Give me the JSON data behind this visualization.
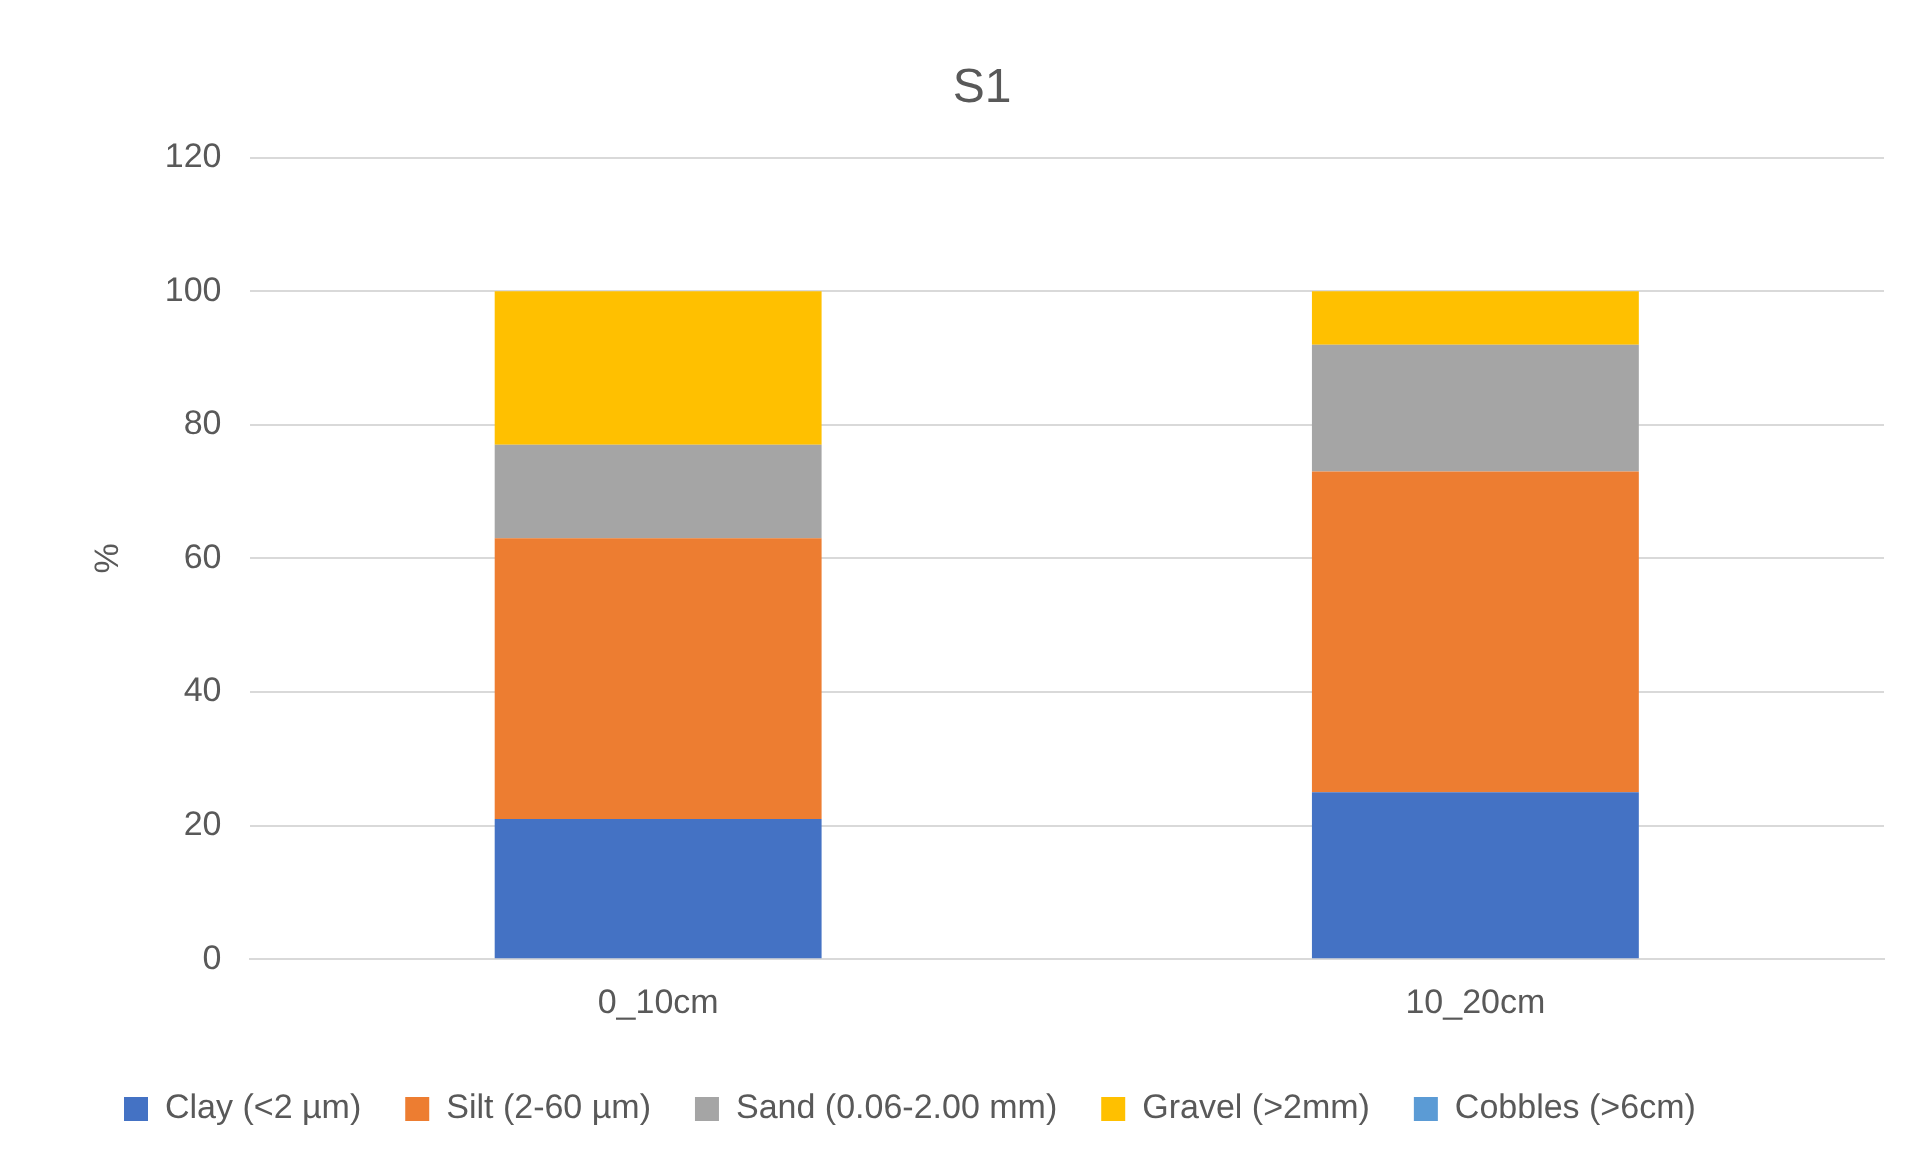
{
  "chart_data": {
    "type": "bar",
    "title": "S1",
    "ylabel": "%",
    "categories": [
      "0_10cm",
      "10_20cm"
    ],
    "stacked": true,
    "ylim": [
      0,
      120
    ],
    "yticks": [
      0,
      20,
      40,
      60,
      80,
      100,
      120
    ],
    "grid": "y",
    "legend": "bottom",
    "series": [
      {
        "name": "Clay (<2 µm)",
        "color": "#4472c4",
        "values": [
          21,
          25
        ]
      },
      {
        "name": "Silt (2-60 µm)",
        "color": "#ed7d31",
        "values": [
          42,
          48
        ]
      },
      {
        "name": "Sand (0.06-2.00 mm)",
        "color": "#a5a5a5",
        "values": [
          14,
          19
        ]
      },
      {
        "name": "Gravel (>2mm)",
        "color": "#ffc000",
        "values": [
          23,
          8
        ]
      },
      {
        "name": "Cobbles (>6cm)",
        "color": "#5b9bd5",
        "values": [
          0,
          0
        ]
      }
    ]
  }
}
